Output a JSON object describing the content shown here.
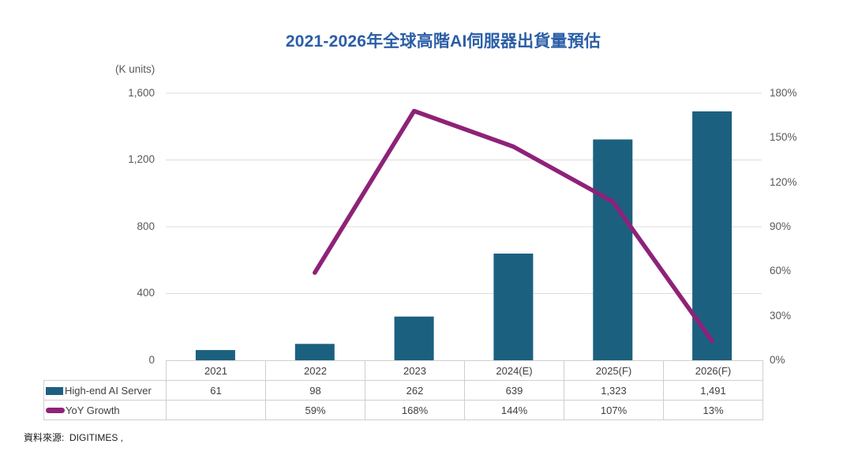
{
  "title": "2021-2026年全球高階AI伺服器出貨量預估",
  "source_note": "資料來源:  DIGITIMES ,",
  "colors": {
    "bar": "#1c6080",
    "line": "#8e2278",
    "title": "#2b5ea7",
    "axis_text": "#595959",
    "grid": "#dcdcdc",
    "table_border": "#cfcfcf",
    "table_text": "#3f3f3f",
    "source_text": "#1a1a1a"
  },
  "chart_data": {
    "type": "bar+line combo",
    "title": "2021-2026年全球高階AI伺服器出貨量預估",
    "categories": [
      "2021",
      "2022",
      "2023",
      "2024(E)",
      "2025(F)",
      "2026(F)"
    ],
    "series": [
      {
        "name": "High-end AI Server",
        "type": "bar",
        "axis": "left",
        "values": [
          61,
          98,
          262,
          639,
          1323,
          1491
        ],
        "display": [
          "61",
          "98",
          "262",
          "639",
          "1,323",
          "1,491"
        ]
      },
      {
        "name": "YoY Growth",
        "type": "line",
        "axis": "right",
        "values": [
          null,
          59,
          168,
          144,
          107,
          13
        ],
        "display": [
          "",
          "59%",
          "168%",
          "144%",
          "107%",
          "13%"
        ]
      }
    ],
    "left_axis": {
      "unit": "(K units)",
      "min": 0,
      "max": 1600,
      "step": 400,
      "ticks": [
        "1,600",
        "1,200",
        "800",
        "400",
        "0"
      ]
    },
    "right_axis": {
      "min": 0,
      "max": 180,
      "step": 30,
      "ticks": [
        "180%",
        "150%",
        "120%",
        "90%",
        "60%",
        "30%",
        "0%"
      ]
    },
    "grid": "horizontal gridlines at left-axis steps",
    "legend_position": "table rows below chart"
  }
}
